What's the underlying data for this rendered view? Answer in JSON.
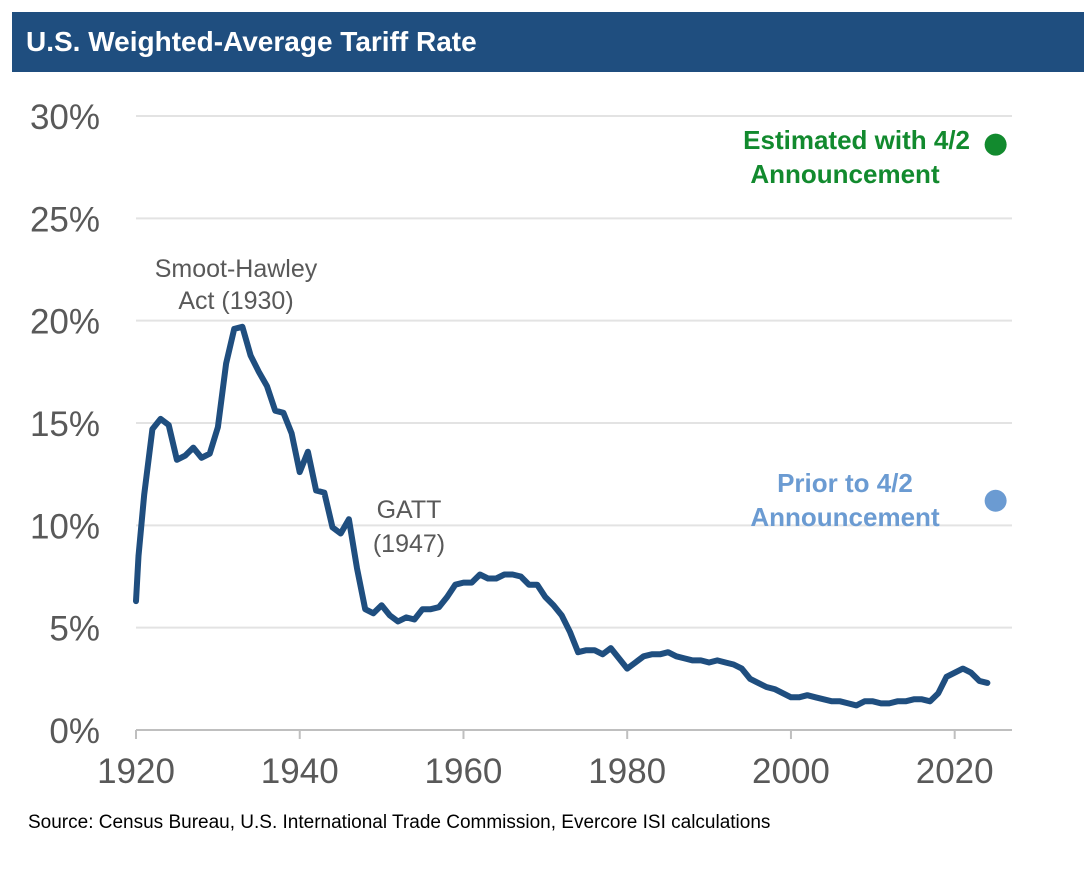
{
  "title": "U.S. Weighted-Average Tariff Rate",
  "source": "Source: Census Bureau, U.S. International Trade Commission, Evercore ISI calculations",
  "colors": {
    "title_bg": "#1F4E7F",
    "line": "#1F4E7F",
    "estimated": "#128A2E",
    "prior": "#6B9BD2",
    "grid": "#E3E3E3",
    "axis": "#BFBFBF"
  },
  "chart_data": {
    "type": "line",
    "title": "U.S. Weighted-Average Tariff Rate",
    "xlabel": "",
    "ylabel": "",
    "xlim": [
      1920,
      2027
    ],
    "ylim": [
      0,
      30
    ],
    "grid": "horizontal",
    "x_ticks": [
      1920,
      1940,
      1960,
      1980,
      2000,
      2020
    ],
    "x_tick_labels": [
      "1920",
      "1940",
      "1960",
      "1980",
      "2000",
      "2020"
    ],
    "y_ticks": [
      0,
      5,
      10,
      15,
      20,
      25,
      30
    ],
    "y_tick_labels": [
      "0%",
      "5%",
      "10%",
      "15%",
      "20%",
      "25%",
      "30%"
    ],
    "series": [
      {
        "x": [
          1920,
          1920.3,
          1921,
          1922,
          1923,
          1924,
          1925,
          1926,
          1927,
          1928,
          1929,
          1930,
          1931,
          1932,
          1933,
          1934,
          1935,
          1936,
          1937,
          1938,
          1939,
          1940,
          1941,
          1942,
          1943,
          1944,
          1945,
          1946,
          1947,
          1948,
          1949,
          1950,
          1951,
          1952,
          1953,
          1954,
          1955,
          1956,
          1957,
          1958,
          1959,
          1960,
          1961,
          1962,
          1963,
          1964,
          1965,
          1966,
          1967,
          1968,
          1969,
          1970,
          1971,
          1972,
          1973,
          1974,
          1975,
          1976,
          1977,
          1978,
          1979,
          1980,
          1981,
          1982,
          1983,
          1984,
          1985,
          1986,
          1987,
          1988,
          1989,
          1990,
          1991,
          1992,
          1993,
          1994,
          1995,
          1996,
          1997,
          1998,
          1999,
          2000,
          2001,
          2002,
          2003,
          2004,
          2005,
          2006,
          2007,
          2008,
          2009,
          2010,
          2011,
          2012,
          2013,
          2014,
          2015,
          2016,
          2017,
          2018,
          2019,
          2020,
          2021,
          2022,
          2023,
          2024
        ],
        "values": [
          6.3,
          8.5,
          11.5,
          14.7,
          15.2,
          14.9,
          13.2,
          13.4,
          13.8,
          13.3,
          13.5,
          14.8,
          17.9,
          19.6,
          19.7,
          18.3,
          17.5,
          16.8,
          15.6,
          15.5,
          14.5,
          12.6,
          13.6,
          11.7,
          11.6,
          9.9,
          9.6,
          10.3,
          7.9,
          5.9,
          5.7,
          6.1,
          5.6,
          5.3,
          5.5,
          5.4,
          5.9,
          5.9,
          6.0,
          6.5,
          7.1,
          7.2,
          7.2,
          7.6,
          7.4,
          7.4,
          7.6,
          7.6,
          7.5,
          7.1,
          7.1,
          6.5,
          6.1,
          5.6,
          4.8,
          3.8,
          3.9,
          3.9,
          3.7,
          4.0,
          3.5,
          3.0,
          3.3,
          3.6,
          3.7,
          3.7,
          3.8,
          3.6,
          3.5,
          3.4,
          3.4,
          3.3,
          3.4,
          3.3,
          3.2,
          3.0,
          2.5,
          2.3,
          2.1,
          2.0,
          1.8,
          1.6,
          1.6,
          1.7,
          1.6,
          1.5,
          1.4,
          1.4,
          1.3,
          1.2,
          1.4,
          1.4,
          1.3,
          1.3,
          1.4,
          1.4,
          1.5,
          1.5,
          1.4,
          1.8,
          2.6,
          2.8,
          3.0,
          2.8,
          2.4,
          2.3
        ]
      }
    ],
    "points": [
      {
        "name": "Estimated with 4/2 Announcement",
        "x": 2025,
        "y": 28.6,
        "color": "#128A2E"
      },
      {
        "name": "Prior to 4/2 Announcement",
        "x": 2025,
        "y": 11.2,
        "color": "#6B9BD2"
      }
    ],
    "annotations": {
      "smoot_line1": "Smoot-Hawley",
      "smoot_line2": "Act (1930)",
      "gatt_line1": "GATT",
      "gatt_line2": "(1947)",
      "estimated_line1": "Estimated with 4/2",
      "estimated_line2": "Announcement",
      "prior_line1": "Prior to 4/2",
      "prior_line2": "Announcement"
    }
  }
}
